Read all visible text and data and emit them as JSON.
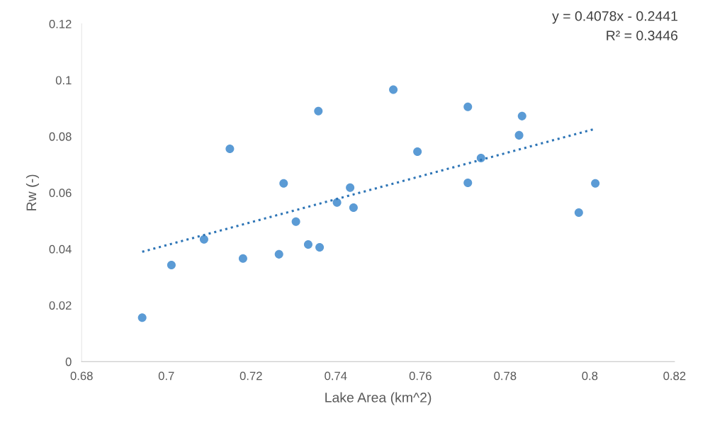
{
  "chart_data": {
    "type": "scatter",
    "xlabel": "Lake Area (km^2)",
    "ylabel": "Rw (-)",
    "annotations": [
      "y = 0.4078x - 0.2441",
      "R² = 0.3446"
    ],
    "grid": false,
    "legend": false,
    "xlim": [
      0.68,
      0.82
    ],
    "xticks": [
      0.68,
      0.7,
      0.72,
      0.74,
      0.76,
      0.78,
      0.8,
      0.82
    ],
    "ylim": [
      0,
      0.12
    ],
    "yticks": [
      0,
      0.02,
      0.04,
      0.06,
      0.08,
      0.1,
      0.12
    ],
    "series": [
      {
        "marker": "circle",
        "color": "#5b9bd5",
        "x": [
          0.6943,
          0.7012,
          0.7089,
          0.715,
          0.7181,
          0.7266,
          0.7277,
          0.7306,
          0.7335,
          0.7359,
          0.7362,
          0.7403,
          0.7434,
          0.7442,
          0.7536,
          0.7593,
          0.7712,
          0.7712,
          0.7743,
          0.7833,
          0.784,
          0.7974,
          0.8013
        ],
        "values": [
          0.0156,
          0.0343,
          0.0434,
          0.0756,
          0.0366,
          0.0381,
          0.0633,
          0.0497,
          0.0416,
          0.089,
          0.0406,
          0.0565,
          0.0618,
          0.0547,
          0.0966,
          0.0746,
          0.0905,
          0.0635,
          0.0723,
          0.0804,
          0.0872,
          0.0529,
          0.0633
        ]
      },
      {
        "type": "line",
        "color": "#2e75b6",
        "line_style": "dotted",
        "x": [
          0.6943,
          0.8013
        ],
        "values": [
          0.039,
          0.0827
        ]
      }
    ]
  }
}
